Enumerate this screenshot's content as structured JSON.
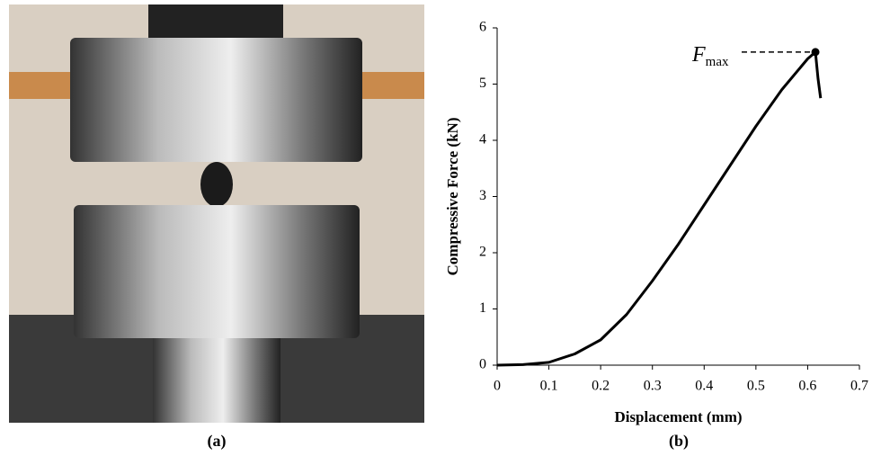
{
  "panels": [
    "(a)",
    "(b)"
  ],
  "chart_data": {
    "type": "line",
    "x_label": "Displacement (mm)",
    "y_label": "Compressive Force (kN)",
    "x": [
      0,
      0.05,
      0.1,
      0.15,
      0.2,
      0.25,
      0.3,
      0.35,
      0.4,
      0.45,
      0.5,
      0.55,
      0.6,
      0.615,
      0.62,
      0.625
    ],
    "values": [
      0,
      0.01,
      0.05,
      0.2,
      0.45,
      0.9,
      1.5,
      2.15,
      2.85,
      3.55,
      4.25,
      4.9,
      5.45,
      5.57,
      5.1,
      4.75
    ],
    "color": "#000000",
    "peak": {
      "x": 0.615,
      "y": 5.57
    },
    "annotation": {
      "label": "F",
      "subscript": "max"
    },
    "xlim": [
      0,
      0.7
    ],
    "xticks": [
      0,
      0.1,
      0.2,
      0.3,
      0.4,
      0.5,
      0.6,
      0.7
    ],
    "ylim": [
      0,
      6
    ],
    "yticks": [
      0,
      1,
      2,
      3,
      4,
      5,
      6
    ],
    "grid": false
  }
}
